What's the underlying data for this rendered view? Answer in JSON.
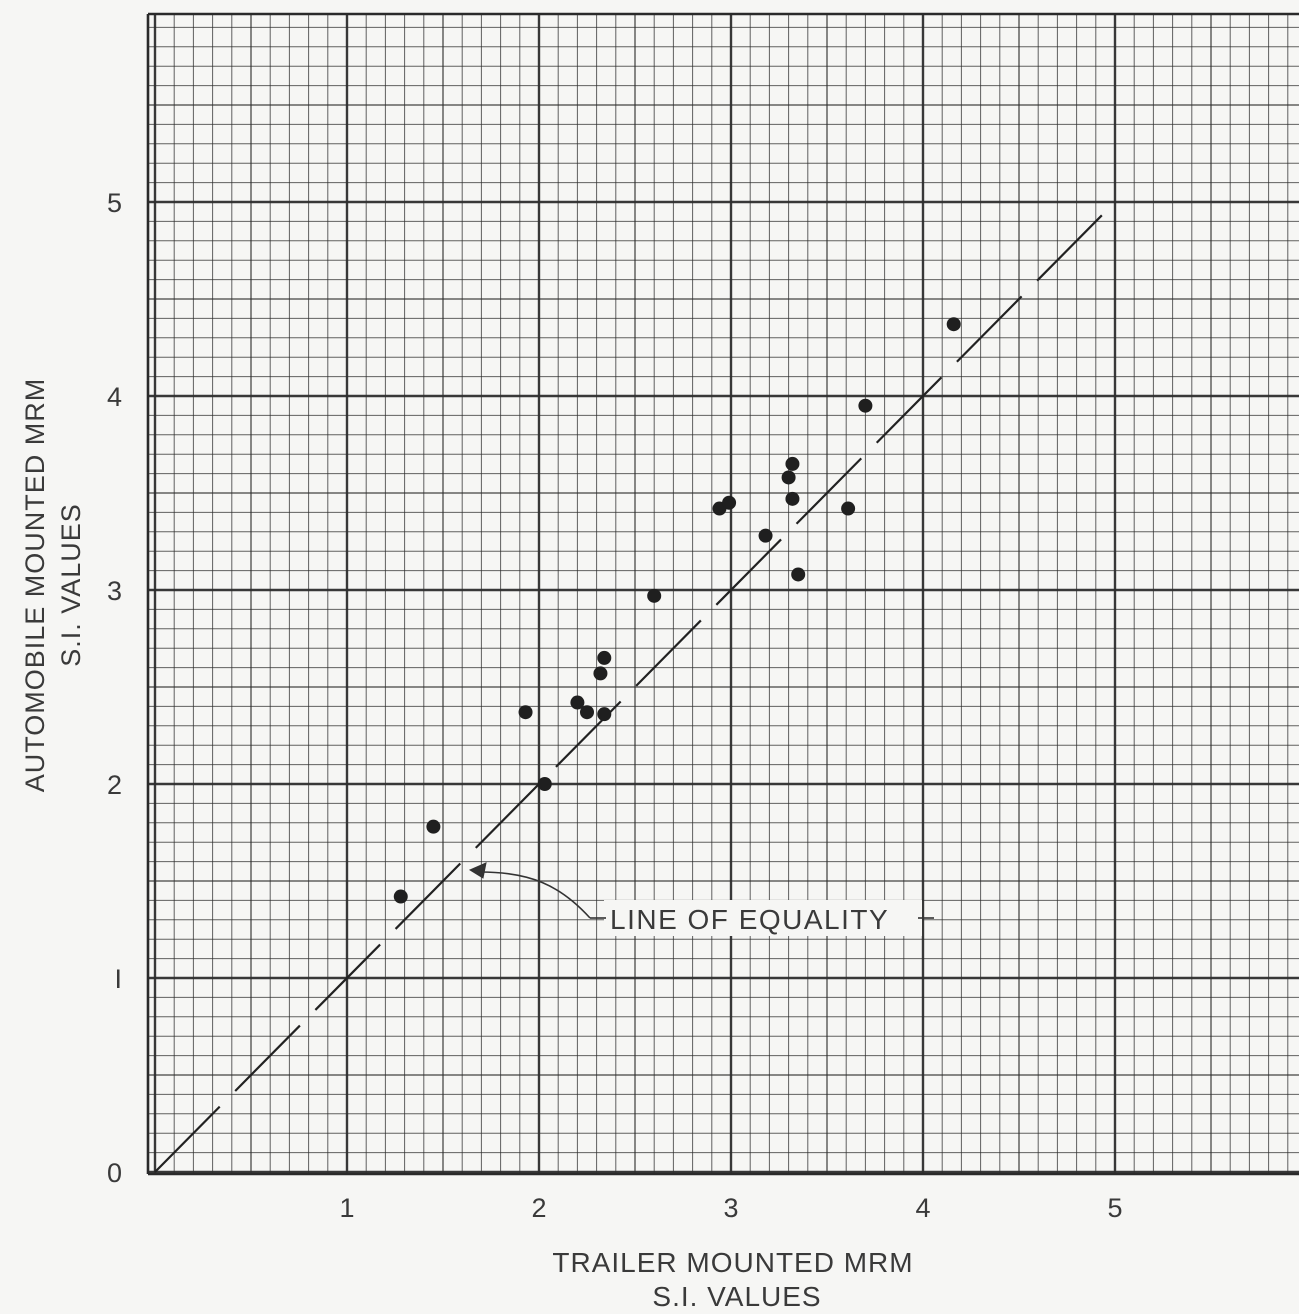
{
  "chart_data": {
    "type": "scatter",
    "title": "",
    "xlabel": [
      "TRAILER MOUNTED MRM",
      "S.I. VALUES"
    ],
    "ylabel": [
      "AUTOMOBILE MOUNTED MRM",
      "S.I. VALUES"
    ],
    "xlim": [
      0,
      5.85
    ],
    "ylim": [
      0,
      5.95
    ],
    "x_ticks": [
      {
        "value": 1,
        "label": "1"
      },
      {
        "value": 2,
        "label": "2"
      },
      {
        "value": 3,
        "label": "3"
      },
      {
        "value": 4,
        "label": "4"
      },
      {
        "value": 5,
        "label": "5"
      }
    ],
    "y_ticks": [
      {
        "value": 0,
        "label": "0"
      },
      {
        "value": 1,
        "label": "I"
      },
      {
        "value": 2,
        "label": "2"
      },
      {
        "value": 3,
        "label": "3"
      },
      {
        "value": 4,
        "label": "4"
      },
      {
        "value": 5,
        "label": "5"
      }
    ],
    "grid": {
      "major": 1,
      "minor": 0.1,
      "visible": true
    },
    "series": [
      {
        "points": [
          {
            "x": 1.28,
            "y": 1.42
          },
          {
            "x": 1.45,
            "y": 1.78
          },
          {
            "x": 1.93,
            "y": 2.37
          },
          {
            "x": 2.03,
            "y": 2.0
          },
          {
            "x": 2.2,
            "y": 2.42
          },
          {
            "x": 2.25,
            "y": 2.37
          },
          {
            "x": 2.32,
            "y": 2.57
          },
          {
            "x": 2.34,
            "y": 2.65
          },
          {
            "x": 2.34,
            "y": 2.36
          },
          {
            "x": 2.6,
            "y": 2.97
          },
          {
            "x": 2.94,
            "y": 3.42
          },
          {
            "x": 2.99,
            "y": 3.45
          },
          {
            "x": 3.18,
            "y": 3.28
          },
          {
            "x": 3.3,
            "y": 3.58
          },
          {
            "x": 3.32,
            "y": 3.65
          },
          {
            "x": 3.32,
            "y": 3.47
          },
          {
            "x": 3.35,
            "y": 3.08
          },
          {
            "x": 3.61,
            "y": 3.42
          },
          {
            "x": 3.7,
            "y": 3.95
          },
          {
            "x": 4.16,
            "y": 4.37
          }
        ]
      }
    ],
    "reference_line": {
      "label": "LINE OF EQUALITY",
      "from": [
        0,
        0
      ],
      "to": [
        5,
        5
      ],
      "style": "long-dash"
    }
  }
}
